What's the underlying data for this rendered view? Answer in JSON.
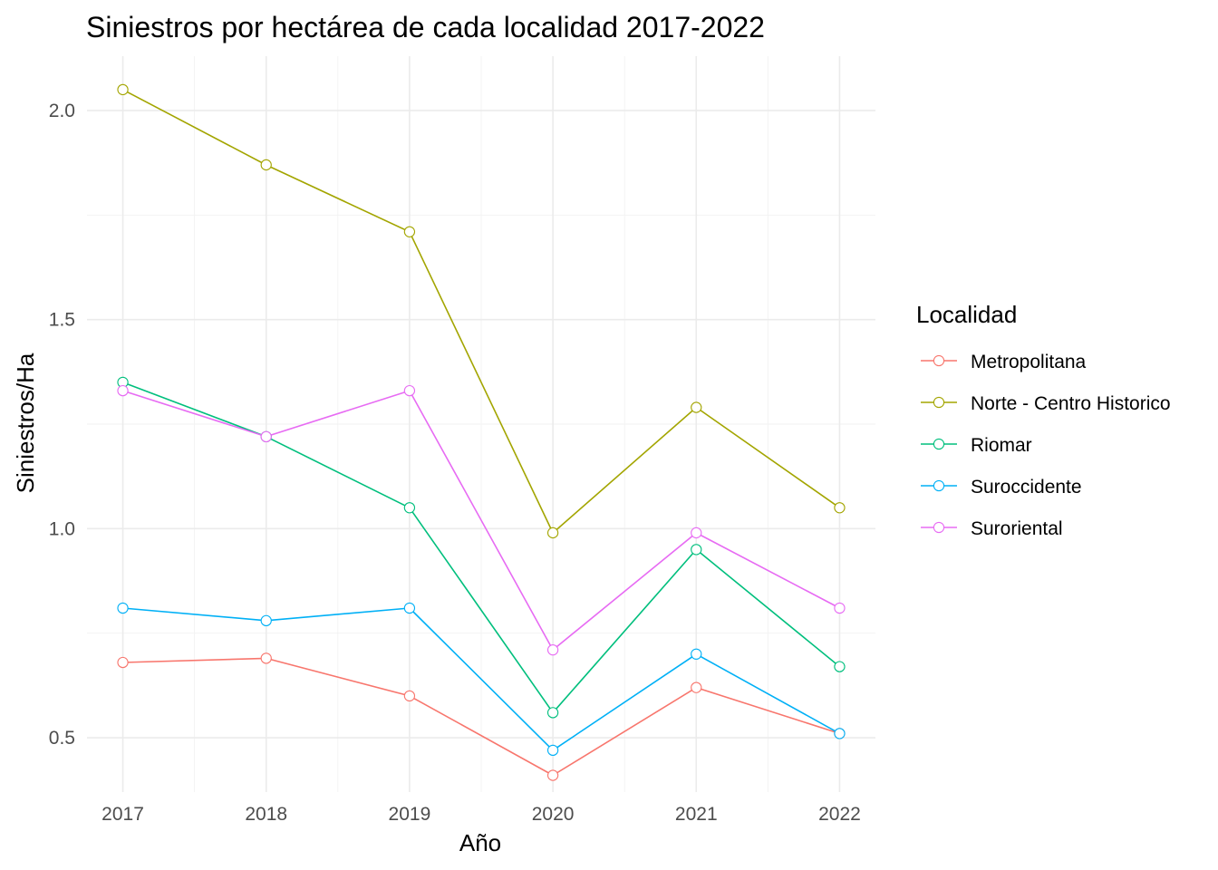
{
  "chart_data": {
    "type": "line",
    "title": "Siniestros por hectárea de cada localidad 2017-2022",
    "xlabel": "Año",
    "ylabel": "Siniestros/Ha",
    "x": [
      2017,
      2018,
      2019,
      2020,
      2021,
      2022
    ],
    "x_tick_labels": [
      "2017",
      "2018",
      "2019",
      "2020",
      "2021",
      "2022"
    ],
    "y_ticks": [
      0.5,
      1.0,
      1.5,
      2.0
    ],
    "y_tick_labels": [
      "0.5",
      "1.0",
      "1.5",
      "2.0"
    ],
    "ylim": [
      0.37,
      2.13
    ],
    "xlim": [
      2016.75,
      2022.25
    ],
    "grid": true,
    "legend_position": "right",
    "legend_title": "Localidad",
    "series": [
      {
        "name": "Metropolitana",
        "color": "#F8766D",
        "values": [
          0.68,
          0.69,
          0.6,
          0.41,
          0.62,
          0.51
        ]
      },
      {
        "name": "Norte - Centro Historico",
        "color": "#A3A500",
        "values": [
          2.05,
          1.87,
          1.71,
          0.99,
          1.29,
          1.05
        ]
      },
      {
        "name": "Riomar",
        "color": "#00BF7D",
        "values": [
          1.35,
          1.22,
          1.05,
          0.56,
          0.95,
          0.67
        ]
      },
      {
        "name": "Suroccidente",
        "color": "#00B0F6",
        "values": [
          0.81,
          0.78,
          0.81,
          0.47,
          0.7,
          0.51
        ]
      },
      {
        "name": "Suroriental",
        "color": "#E76BF3",
        "values": [
          1.33,
          1.22,
          1.33,
          0.71,
          0.99,
          0.81
        ]
      }
    ]
  }
}
